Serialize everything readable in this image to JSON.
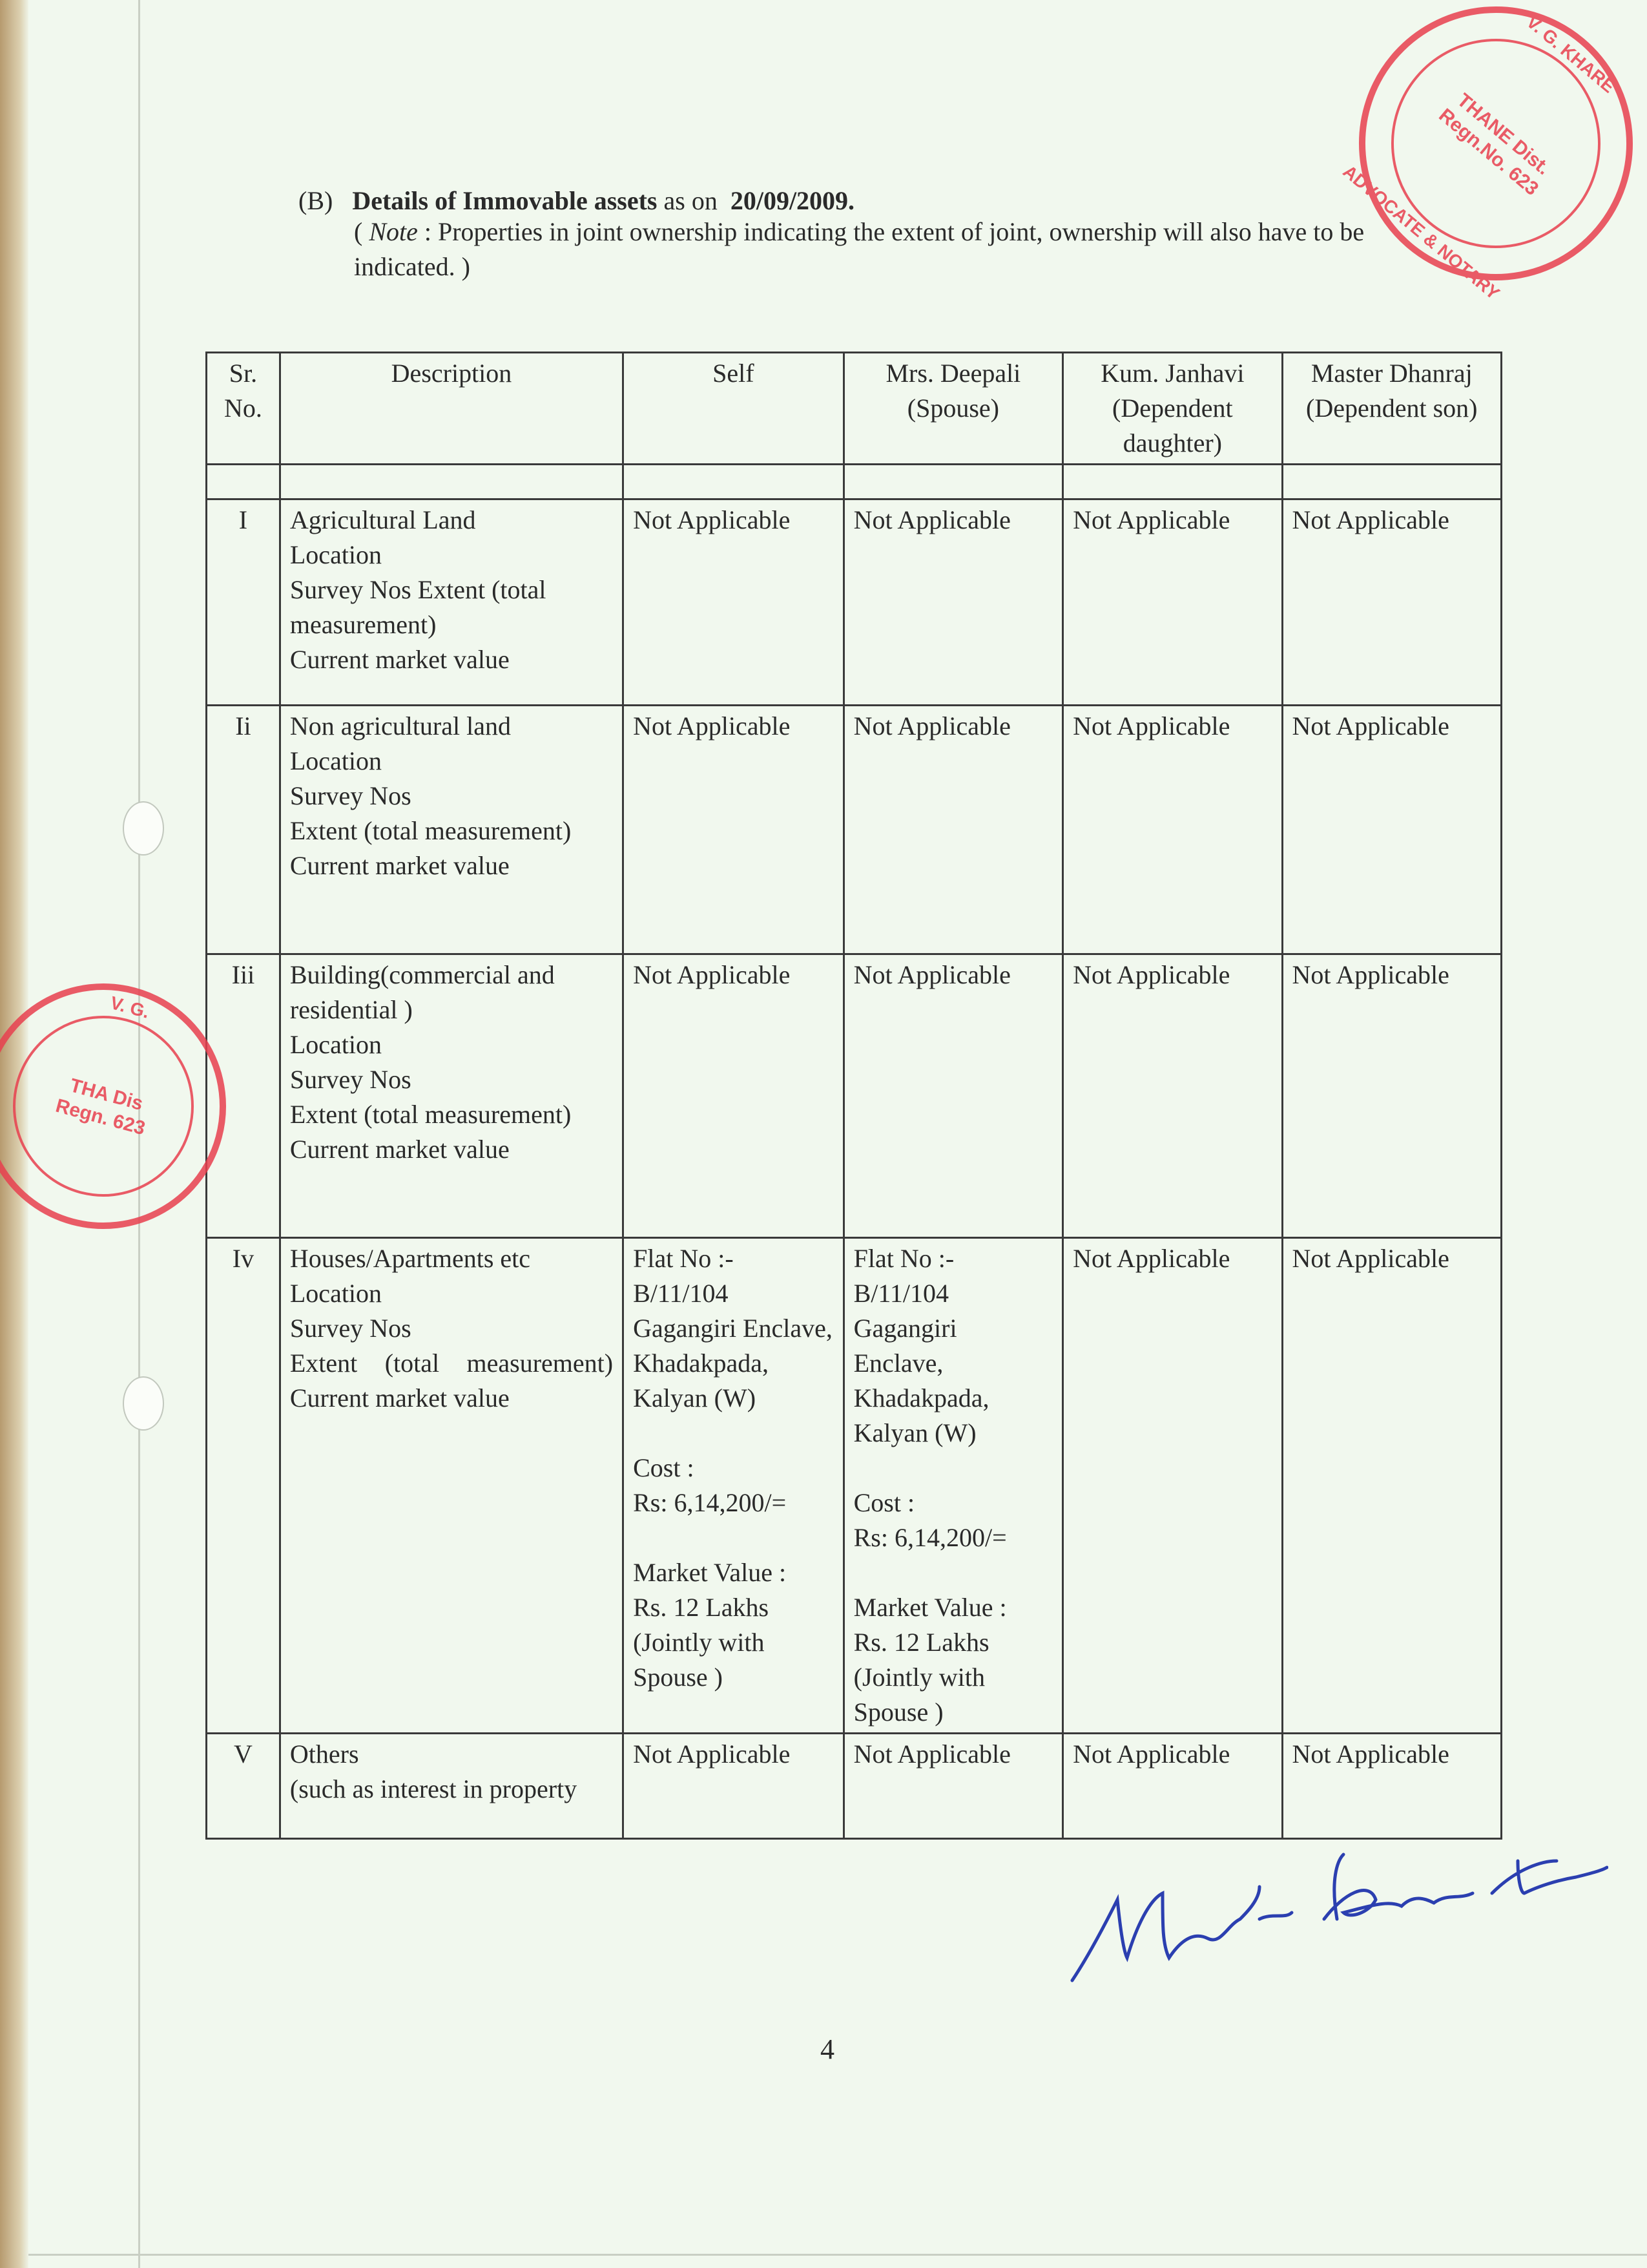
{
  "heading": {
    "prefix": "(B)",
    "title": "Details of Immovable assets",
    "as_on": "as on",
    "date": "20/09/2009."
  },
  "note": {
    "label": "Note",
    "text": ":  Properties  in joint  ownership  indicating  the extent of joint, ownership will also have to be indicated. )",
    "open": "( "
  },
  "table": {
    "headers": [
      "Sr. No.",
      "Description",
      "Self",
      "Mrs. Deepali (Spouse)",
      "Kum. Janhavi (Dependent daughter)",
      "Master Dhanraj (Dependent son)"
    ],
    "rows": [
      {
        "sr": "I",
        "desc": [
          "Agricultural Land",
          "Location",
          "Survey Nos Extent (total measurement)",
          "Current market value"
        ],
        "cells": [
          "Not Applicable",
          "Not Applicable",
          "Not Applicable",
          "Not Applicable"
        ]
      },
      {
        "sr": "Ii",
        "desc": [
          "Non agricultural land",
          "Location",
          "Survey Nos",
          "Extent (total measurement)",
          "Current market value"
        ],
        "cells": [
          "Not Applicable",
          "Not Applicable",
          "Not Applicable",
          "Not Applicable"
        ]
      },
      {
        "sr": "Iii",
        "desc": [
          "Building(commercial and residential )",
          "Location",
          "Survey Nos",
          "Extent (total measurement)",
          "Current market value"
        ],
        "cells": [
          "Not Applicable",
          "Not Applicable",
          "Not Applicable",
          "Not Applicable"
        ]
      },
      {
        "sr": "Iv",
        "desc": [
          "Houses/Apartments etc",
          "Location",
          "Survey Nos",
          "Extent (total measurement)",
          "Current market value"
        ],
        "self": {
          "address": "Flat No :- B/11/104 Gagangiri Enclave, Khadakpada, Kalyan (W)",
          "cost_label": "Cost :",
          "cost": "Rs: 6,14,200/=",
          "mv_label": "Market Value :",
          "mv": "Rs. 12 Lakhs (Jointly with Spouse )"
        },
        "spouse": {
          "address": "Flat No :- B/11/104 Gagangiri Enclave, Khadakpada, Kalyan (W)",
          "cost_label": "Cost  :",
          "cost": "Rs: 6,14,200/=",
          "mv_label": "Market Value :",
          "mv": "Rs. 12 Lakhs (Jointly with Spouse )"
        },
        "cells": [
          "Not Applicable",
          "Not Applicable"
        ]
      },
      {
        "sr": "V",
        "desc": [
          "Others",
          "(such as interest in property"
        ],
        "cells": [
          "Not Applicable",
          "Not Applicable",
          "Not Applicable",
          "Not Applicable"
        ]
      }
    ]
  },
  "stamp_top": {
    "name": "V. G. KHARE",
    "role": "ADVOCATE & NOTARY",
    "place": "THANE Dist.",
    "reg": "Regn.No. 623",
    "color": "#e8404f"
  },
  "stamp_left": {
    "name": "V. G.",
    "place": "THA Dis",
    "reg": "Regn. 623",
    "color": "#e8404f"
  },
  "signature": "Mahesh Bharat Tapase",
  "page_number": "4"
}
